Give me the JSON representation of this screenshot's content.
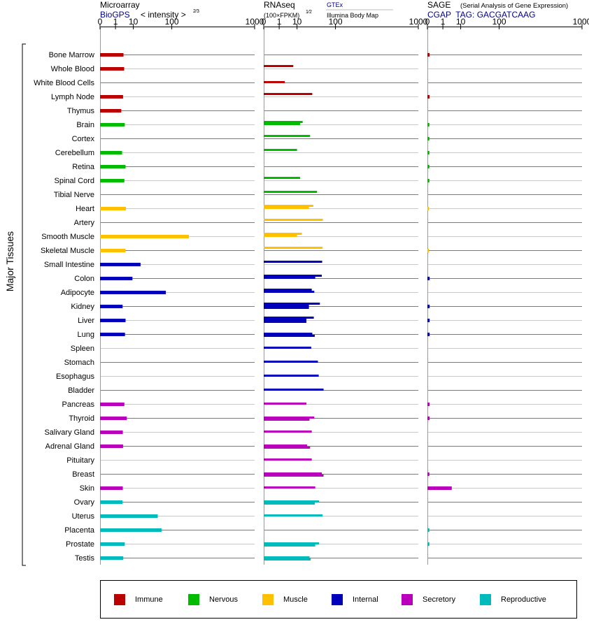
{
  "header": {
    "microarray_title": "Microarray",
    "microarray_source": "BioGPS",
    "microarray_units": "< intensity >",
    "microarray_units_exp": "2/3",
    "rnaseq_title": "RNAseq",
    "rnaseq_units": "(100×FPKM)",
    "rnaseq_units_exp": "1/2",
    "rnaseq_source": "GTEx",
    "rnaseq_source2": "Illumina Body Map",
    "sage_title": "SAGE",
    "sage_subtitle": "(Serial Analysis of Gene Expression)",
    "sage_tag": "CGAP  TAG: GACGATCAAG"
  },
  "axis_group_label": "Major Tissues",
  "colors": {
    "Immune": "#bb0000",
    "Nervous": "#00bb00",
    "Muscle": "#ffc000",
    "Internal": "#0000bb",
    "Secretory": "#bb00bb",
    "Reproductive": "#00bbbb"
  },
  "legend": [
    "Immune",
    "Nervous",
    "Muscle",
    "Internal",
    "Secretory",
    "Reproductive"
  ],
  "chart_data": [
    {
      "type": "bar",
      "panel": "Microarray",
      "scale": "power 1/3",
      "xlim": [
        0,
        1000
      ],
      "ticks": [
        "0",
        "1",
        "10",
        "100",
        "1000"
      ],
      "categories": [
        "Bone Marrow",
        "Whole Blood",
        "White Blood Cells",
        "Lymph Node",
        "Thymus",
        "Brain",
        "Cortex",
        "Cerebellum",
        "Retina",
        "Spinal Cord",
        "Tibial Nerve",
        "Heart",
        "Artery",
        "Smooth Muscle",
        "Skeletal Muscle",
        "Small Intestine",
        "Colon",
        "Adipocyte",
        "Kidney",
        "Liver",
        "Lung",
        "Spleen",
        "Stomach",
        "Esophagus",
        "Bladder",
        "Pancreas",
        "Thyroid",
        "Salivary Gland",
        "Adrenal Gland",
        "Pituitary",
        "Breast",
        "Skin",
        "Ovary",
        "Uterus",
        "Placenta",
        "Prostate",
        "Testis"
      ],
      "groups": [
        "Immune",
        "Immune",
        "Immune",
        "Immune",
        "Immune",
        "Nervous",
        "Nervous",
        "Nervous",
        "Nervous",
        "Nervous",
        "Nervous",
        "Muscle",
        "Muscle",
        "Muscle",
        "Muscle",
        "Internal",
        "Internal",
        "Internal",
        "Internal",
        "Internal",
        "Internal",
        "Internal",
        "Internal",
        "Internal",
        "Internal",
        "Secretory",
        "Secretory",
        "Secretory",
        "Secretory",
        "Secretory",
        "Secretory",
        "Secretory",
        "Reproductive",
        "Reproductive",
        "Reproductive",
        "Reproductive",
        "Reproductive"
      ],
      "values": [
        3.5,
        3.8,
        null,
        3.3,
        2.6,
        4.1,
        null,
        2.9,
        4.5,
        3.9,
        null,
        4.7,
        null,
        190,
        4.5,
        18,
        9.2,
        77,
        3.1,
        4.5,
        4.2,
        null,
        null,
        null,
        null,
        3.9,
        5.2,
        3.2,
        3.3,
        null,
        null,
        3.2,
        3.1,
        52,
        63,
        4.1,
        3.4
      ]
    },
    {
      "type": "bar",
      "panel": "RNAseq",
      "scale": "power 1/3",
      "xlim": [
        0,
        1000
      ],
      "ticks": [
        "0",
        "1",
        "10",
        "100",
        "1000"
      ],
      "categories": [
        "Bone Marrow",
        "Whole Blood",
        "White Blood Cells",
        "Lymph Node",
        "Thymus",
        "Brain",
        "Cortex",
        "Cerebellum",
        "Retina",
        "Spinal Cord",
        "Tibial Nerve",
        "Heart",
        "Artery",
        "Smooth Muscle",
        "Skeletal Muscle",
        "Small Intestine",
        "Colon",
        "Adipocyte",
        "Kidney",
        "Liver",
        "Lung",
        "Spleen",
        "Stomach",
        "Esophagus",
        "Bladder",
        "Pancreas",
        "Thyroid",
        "Salivary Gland",
        "Adrenal Gland",
        "Pituitary",
        "Breast",
        "Skin",
        "Ovary",
        "Uterus",
        "Placenta",
        "Prostate",
        "Testis"
      ],
      "series": [
        {
          "values": [
            null,
            7.0,
            null,
            31,
            null,
            16,
            27,
            10,
            null,
            13,
            41,
            33,
            56,
            15,
            55,
            54,
            53,
            30,
            48,
            34,
            null,
            null,
            null,
            null,
            null,
            null,
            null,
            null,
            null,
            null,
            null,
            null,
            null,
            null,
            null,
            null,
            null
          ]
        },
        {
          "values": [
            null,
            null,
            2.5,
            null,
            null,
            13,
            null,
            null,
            null,
            null,
            null,
            25,
            null,
            10,
            null,
            null,
            37,
            35,
            25,
            21,
            31,
            29,
            43,
            45,
            58,
            21,
            35,
            30,
            22,
            30,
            53,
            37,
            46,
            55,
            null,
            46,
            26
          ]
        },
        {
          "values": [
            null,
            null,
            null,
            null,
            null,
            null,
            null,
            null,
            null,
            null,
            null,
            null,
            null,
            null,
            null,
            null,
            null,
            null,
            25,
            21,
            36,
            null,
            null,
            null,
            null,
            null,
            26,
            null,
            27,
            null,
            58,
            null,
            36,
            null,
            null,
            37,
            28
          ]
        }
      ]
    },
    {
      "type": "bar",
      "panel": "SAGE",
      "scale": "power 1/3",
      "xlim": [
        0,
        1000
      ],
      "ticks": [
        "0",
        "1",
        "10",
        "100",
        "1000"
      ],
      "categories": [
        "Bone Marrow",
        "Whole Blood",
        "White Blood Cells",
        "Lymph Node",
        "Thymus",
        "Brain",
        "Cortex",
        "Cerebellum",
        "Retina",
        "Spinal Cord",
        "Tibial Nerve",
        "Heart",
        "Artery",
        "Smooth Muscle",
        "Skeletal Muscle",
        "Small Intestine",
        "Colon",
        "Adipocyte",
        "Kidney",
        "Liver",
        "Lung",
        "Spleen",
        "Stomach",
        "Esophagus",
        "Bladder",
        "Pancreas",
        "Thyroid",
        "Salivary Gland",
        "Adrenal Gland",
        "Pituitary",
        "Breast",
        "Skin",
        "Ovary",
        "Uterus",
        "Placenta",
        "Prostate",
        "Testis"
      ],
      "values": [
        0.003,
        null,
        null,
        0.003,
        null,
        0.002,
        0.002,
        0.002,
        0.002,
        0.002,
        null,
        0.001,
        null,
        null,
        0.001,
        null,
        0.003,
        null,
        0.003,
        0.003,
        0.003,
        null,
        null,
        null,
        null,
        0.003,
        0.003,
        null,
        null,
        null,
        0.002,
        3.9,
        null,
        null,
        0.002,
        0.002,
        null
      ]
    }
  ]
}
